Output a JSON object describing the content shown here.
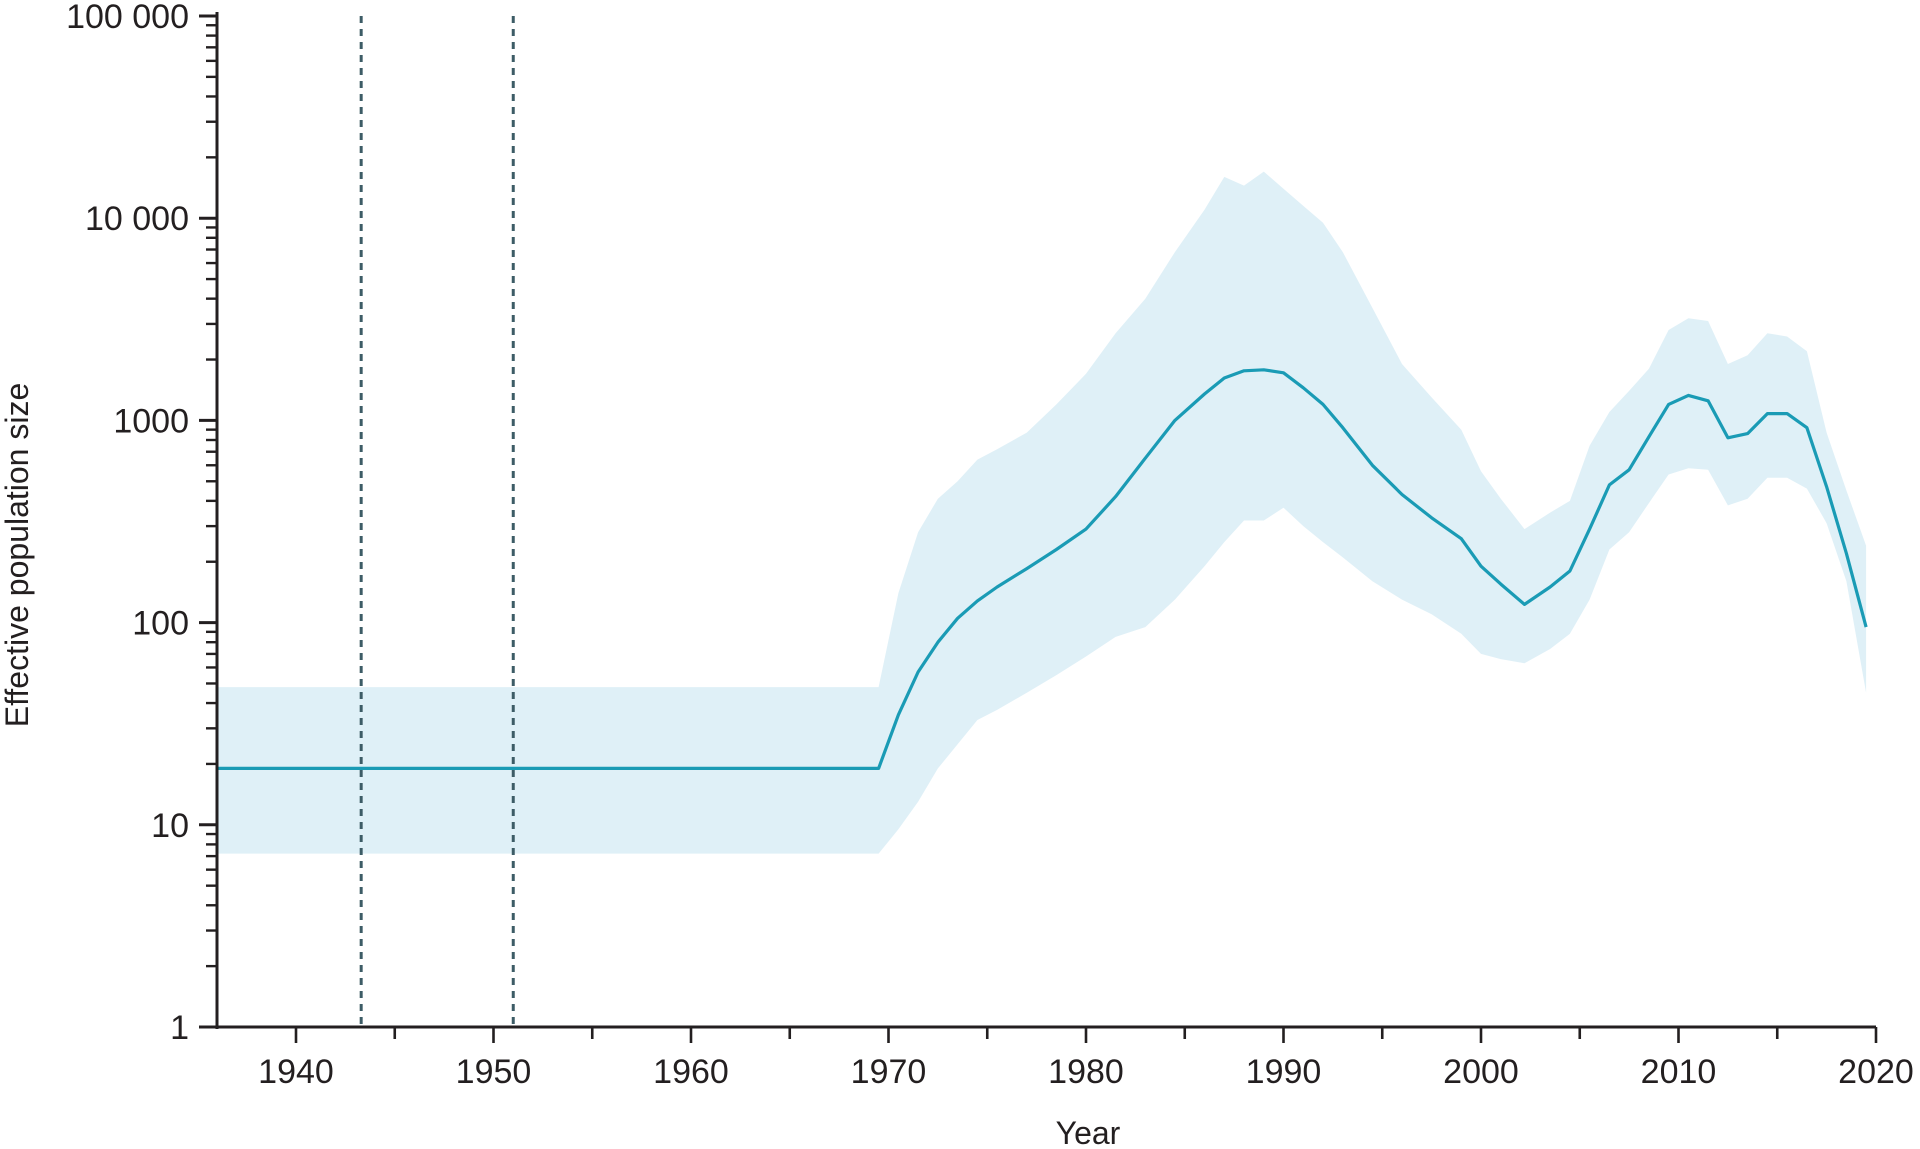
{
  "chart_data": {
    "type": "line",
    "title": "",
    "xlabel": "Year",
    "ylabel": "Effective population size",
    "xlim": [
      1936,
      2020
    ],
    "ylim": [
      1,
      100000
    ],
    "y_scale": "log",
    "grid": false,
    "legend": "none",
    "x_ticks": [
      1940,
      1950,
      1960,
      1970,
      1980,
      1990,
      2000,
      2010,
      2020
    ],
    "x_tick_labels": [
      "1940",
      "1950",
      "1960",
      "1970",
      "1980",
      "1990",
      "2000",
      "2010",
      "2020"
    ],
    "y_ticks": [
      1,
      10,
      100,
      1000,
      10000,
      100000
    ],
    "y_tick_labels": [
      "1",
      "10",
      "100",
      "1000",
      "10 000",
      "100 000"
    ],
    "reference_lines_x": [
      1943.3,
      1951
    ],
    "colors": {
      "median": "#1a9bb5",
      "band": "#dff0f7",
      "reference": "#3d5c66",
      "axis": "#231f20"
    },
    "series": [
      {
        "x": [
          1936,
          1940,
          1950,
          1960,
          1969.5,
          1970.5,
          1971.5,
          1972.5,
          1973.5,
          1974.5,
          1975.5,
          1977,
          1978.5,
          1980,
          1981.5,
          1983,
          1984.5,
          1986,
          1987,
          1988,
          1989,
          1990,
          1991,
          1992,
          1993,
          1994.5,
          1996,
          1997.5,
          1999,
          2000,
          2001,
          2002.2,
          2003.5,
          2004.5,
          2005.5,
          2006.5,
          2007.5,
          2008.5,
          2009.5,
          2010.5,
          2011.5,
          2012.5,
          2013.5,
          2014.5,
          2015.5,
          2016.5,
          2017.5,
          2018.5,
          2019.5
        ],
        "median": [
          19,
          19,
          19,
          19,
          19,
          35,
          57,
          80,
          105,
          128,
          150,
          185,
          230,
          290,
          420,
          650,
          1000,
          1350,
          1620,
          1760,
          1780,
          1720,
          1450,
          1200,
          920,
          600,
          430,
          330,
          260,
          190,
          155,
          123,
          150,
          180,
          290,
          480,
          570,
          830,
          1200,
          1330,
          1250,
          820,
          860,
          1080,
          1080,
          920,
          470,
          220,
          95
        ],
        "upper": [
          48,
          48,
          48,
          48,
          48,
          140,
          280,
          410,
          500,
          640,
          720,
          870,
          1200,
          1700,
          2700,
          4000,
          6800,
          11000,
          16000,
          14500,
          17000,
          14000,
          11500,
          9500,
          6800,
          3600,
          1900,
          1300,
          900,
          560,
          410,
          290,
          350,
          400,
          750,
          1100,
          1400,
          1800,
          2800,
          3200,
          3100,
          1900,
          2100,
          2700,
          2600,
          2200,
          870,
          450,
          240
        ],
        "lower": [
          7.2,
          7.2,
          7.2,
          7.2,
          7.2,
          9.5,
          13,
          19,
          25,
          33,
          37,
          45,
          55,
          68,
          85,
          95,
          130,
          190,
          250,
          320,
          320,
          370,
          300,
          250,
          210,
          160,
          130,
          110,
          88,
          70,
          66,
          63,
          74,
          88,
          130,
          230,
          280,
          390,
          540,
          580,
          570,
          380,
          410,
          520,
          520,
          460,
          310,
          160,
          45
        ]
      }
    ]
  }
}
